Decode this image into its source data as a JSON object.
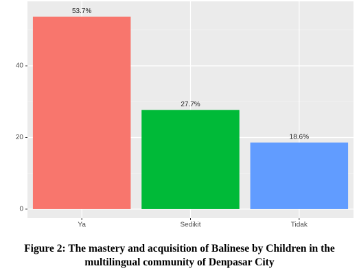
{
  "chart_data": {
    "type": "bar",
    "categories": [
      "Ya",
      "Sedikit",
      "Tidak"
    ],
    "values": [
      53.7,
      27.7,
      18.6
    ],
    "value_labels": [
      "53.7%",
      "27.7%",
      "18.6%"
    ],
    "colors": [
      "#F8766D",
      "#00BA38",
      "#619CFF"
    ],
    "ylim": [
      -2.5,
      58
    ],
    "yticks": [
      0,
      20,
      40
    ],
    "grid": true,
    "caption": "Figure 2: The mastery and acquisition of Balinese by Children in the multilingual community of Denpasar City"
  }
}
